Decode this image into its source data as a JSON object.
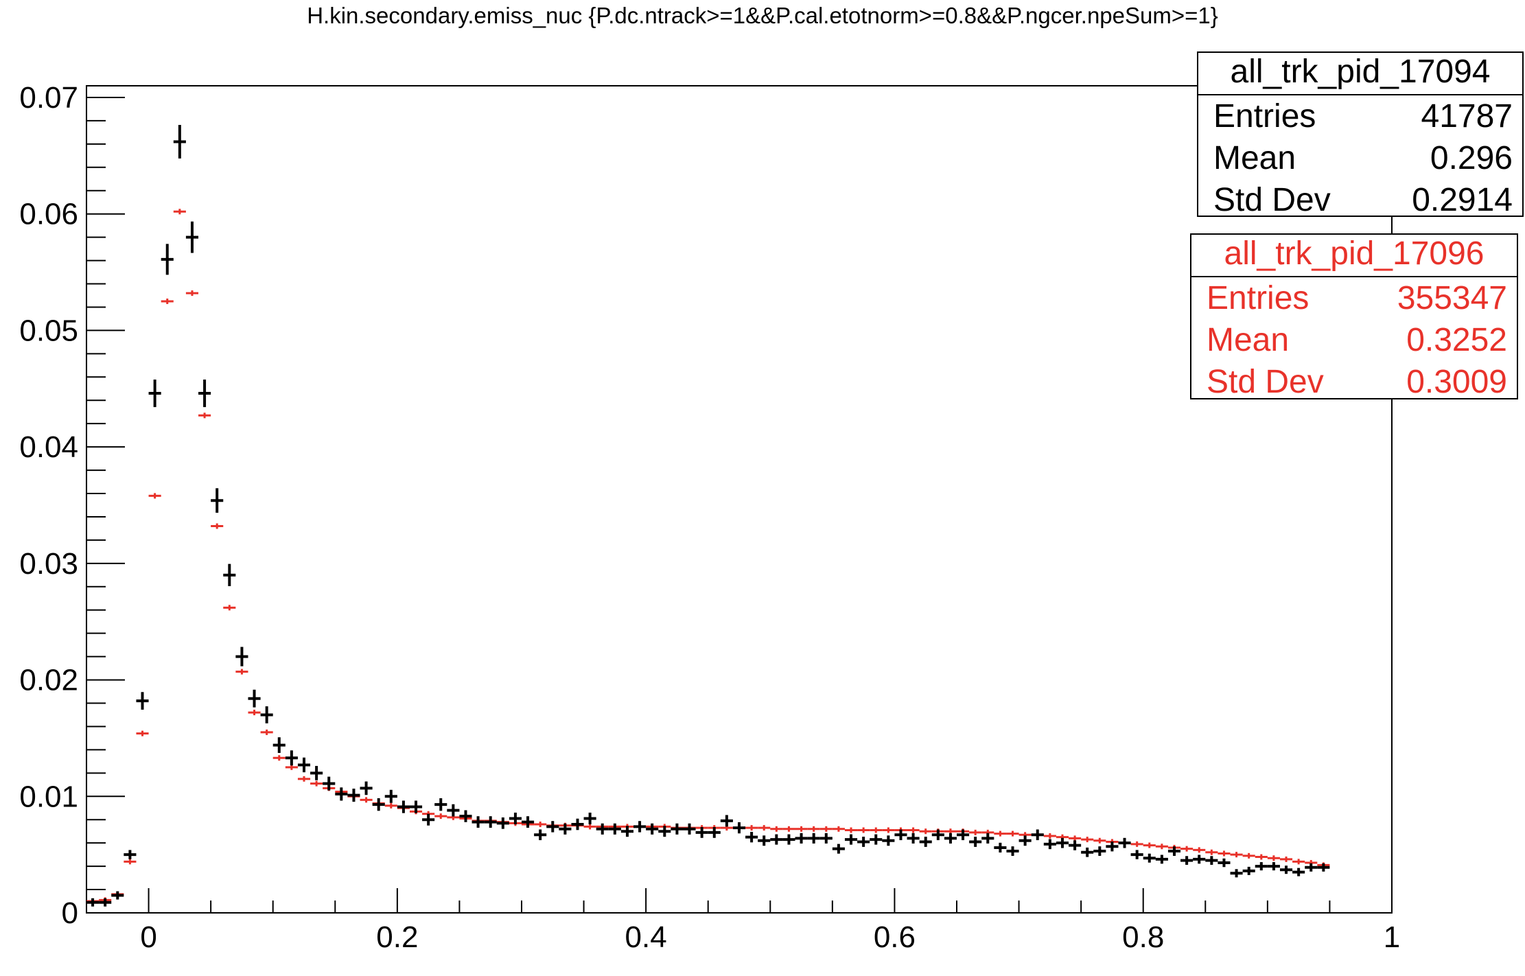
{
  "title": "H.kin.secondary.emiss_nuc {P.dc.ntrack>=1&&P.cal.etotnorm>=0.8&&P.ngcer.npeSum>=1}",
  "stats": [
    {
      "name": "all_trk_pid_17094",
      "color": "#000000",
      "rows": [
        {
          "label": "Entries",
          "value": "41787"
        },
        {
          "label": "Mean",
          "value": "0.296"
        },
        {
          "label": "Std Dev",
          "value": "0.2914"
        }
      ]
    },
    {
      "name": "all_trk_pid_17096",
      "color": "#e8322a",
      "rows": [
        {
          "label": "Entries",
          "value": "355347"
        },
        {
          "label": "Mean",
          "value": "0.3252"
        },
        {
          "label": "Std Dev",
          "value": "0.3009"
        }
      ]
    }
  ],
  "chart_data": {
    "type": "scatter",
    "title": "H.kin.secondary.emiss_nuc {P.dc.ntrack>=1&&P.cal.etotnorm>=0.8&&P.ngcer.npeSum>=1}",
    "xlabel": "",
    "ylabel": "",
    "xlim": [
      -0.05,
      1.0
    ],
    "ylim": [
      0,
      0.071
    ],
    "x_ticks": [
      "0",
      "0.2",
      "0.4",
      "0.6",
      "0.8",
      "1"
    ],
    "y_ticks": [
      "0",
      "0.01",
      "0.02",
      "0.03",
      "0.04",
      "0.05",
      "0.06",
      "0.07"
    ],
    "bin_width": 0.01,
    "bin_start": -0.05,
    "grid": false,
    "legend": "top-right",
    "series": [
      {
        "name": "all_trk_pid_17094",
        "color": "#000000",
        "values": [
          0.0009,
          0.0009,
          0.0015,
          0.005,
          0.0182,
          0.0446,
          0.0561,
          0.0662,
          0.058,
          0.0446,
          0.0354,
          0.029,
          0.022,
          0.0184,
          0.017,
          0.0144,
          0.0133,
          0.0127,
          0.012,
          0.0111,
          0.0102,
          0.0101,
          0.0107,
          0.0093,
          0.01,
          0.0091,
          0.0091,
          0.008,
          0.0093,
          0.0088,
          0.0083,
          0.0078,
          0.0078,
          0.0077,
          0.0081,
          0.0078,
          0.0067,
          0.0074,
          0.0072,
          0.0076,
          0.0081,
          0.0072,
          0.0072,
          0.007,
          0.0074,
          0.0072,
          0.007,
          0.0072,
          0.0072,
          0.0069,
          0.0069,
          0.0079,
          0.0073,
          0.0065,
          0.0062,
          0.0063,
          0.0063,
          0.0064,
          0.0064,
          0.0064,
          0.0055,
          0.0063,
          0.0061,
          0.0063,
          0.0062,
          0.0067,
          0.0064,
          0.0061,
          0.0067,
          0.0064,
          0.0067,
          0.0061,
          0.0064,
          0.0056,
          0.0053,
          0.0062,
          0.0067,
          0.0059,
          0.006,
          0.0058,
          0.0052,
          0.0053,
          0.0057,
          0.006,
          0.005,
          0.0047,
          0.0046,
          0.0053,
          0.0045,
          0.0046,
          0.0045,
          0.0043,
          0.0034,
          0.0036,
          0.004,
          0.004,
          0.0037,
          0.0035,
          0.0039,
          0.0039
        ]
      },
      {
        "name": "all_trk_pid_17096",
        "color": "#e8322a",
        "values": [
          0.001,
          0.0011,
          0.0016,
          0.0044,
          0.0154,
          0.0358,
          0.0525,
          0.0602,
          0.0532,
          0.0427,
          0.0332,
          0.0262,
          0.0207,
          0.0172,
          0.0155,
          0.0133,
          0.0125,
          0.0115,
          0.0111,
          0.0107,
          0.0104,
          0.01,
          0.0097,
          0.0094,
          0.0092,
          0.009,
          0.0087,
          0.0085,
          0.0083,
          0.0082,
          0.0081,
          0.0079,
          0.0079,
          0.0078,
          0.0077,
          0.0076,
          0.0076,
          0.0075,
          0.0075,
          0.0075,
          0.0074,
          0.0074,
          0.0074,
          0.0074,
          0.0074,
          0.0074,
          0.0074,
          0.0073,
          0.0073,
          0.0073,
          0.0073,
          0.0073,
          0.0073,
          0.0073,
          0.0073,
          0.0072,
          0.0072,
          0.0072,
          0.0072,
          0.0072,
          0.0072,
          0.0071,
          0.0071,
          0.0071,
          0.0071,
          0.0071,
          0.0071,
          0.007,
          0.007,
          0.007,
          0.007,
          0.0069,
          0.0069,
          0.0068,
          0.0068,
          0.0067,
          0.0067,
          0.0066,
          0.0065,
          0.0064,
          0.0063,
          0.0062,
          0.0061,
          0.006,
          0.0059,
          0.0058,
          0.0057,
          0.0056,
          0.0055,
          0.0054,
          0.0052,
          0.0051,
          0.005,
          0.0049,
          0.0048,
          0.0047,
          0.0046,
          0.0044,
          0.0043,
          0.0041
        ]
      }
    ]
  }
}
